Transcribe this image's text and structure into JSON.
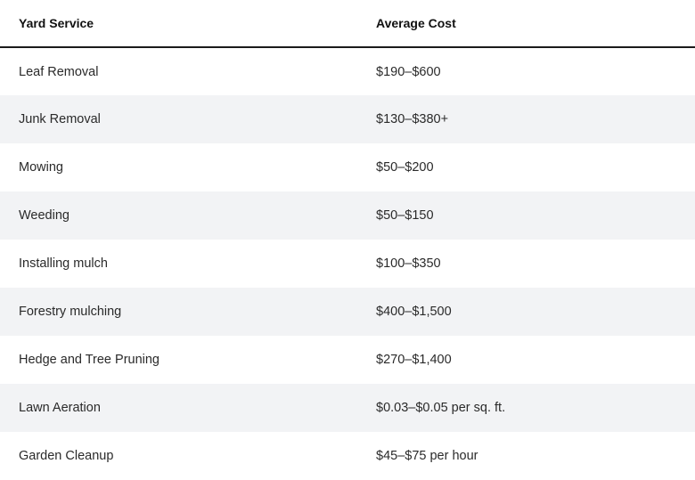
{
  "table": {
    "headers": {
      "service": "Yard Service",
      "cost": "Average Cost"
    },
    "rows": [
      {
        "service": "Leaf Removal",
        "cost": "$190–$600"
      },
      {
        "service": "Junk Removal",
        "cost": "$130–$380+"
      },
      {
        "service": "Mowing",
        "cost": "$50–$200"
      },
      {
        "service": "Weeding",
        "cost": "$50–$150"
      },
      {
        "service": "Installing mulch",
        "cost": "$100–$350"
      },
      {
        "service": "Forestry mulching",
        "cost": "$400–$1,500"
      },
      {
        "service": "Hedge and Tree Pruning",
        "cost": "$270–$1,400"
      },
      {
        "service": "Lawn Aeration",
        "cost": "$0.03–$0.05 per sq. ft."
      },
      {
        "service": "Garden Cleanup",
        "cost": "$45–$75 per hour"
      }
    ]
  }
}
